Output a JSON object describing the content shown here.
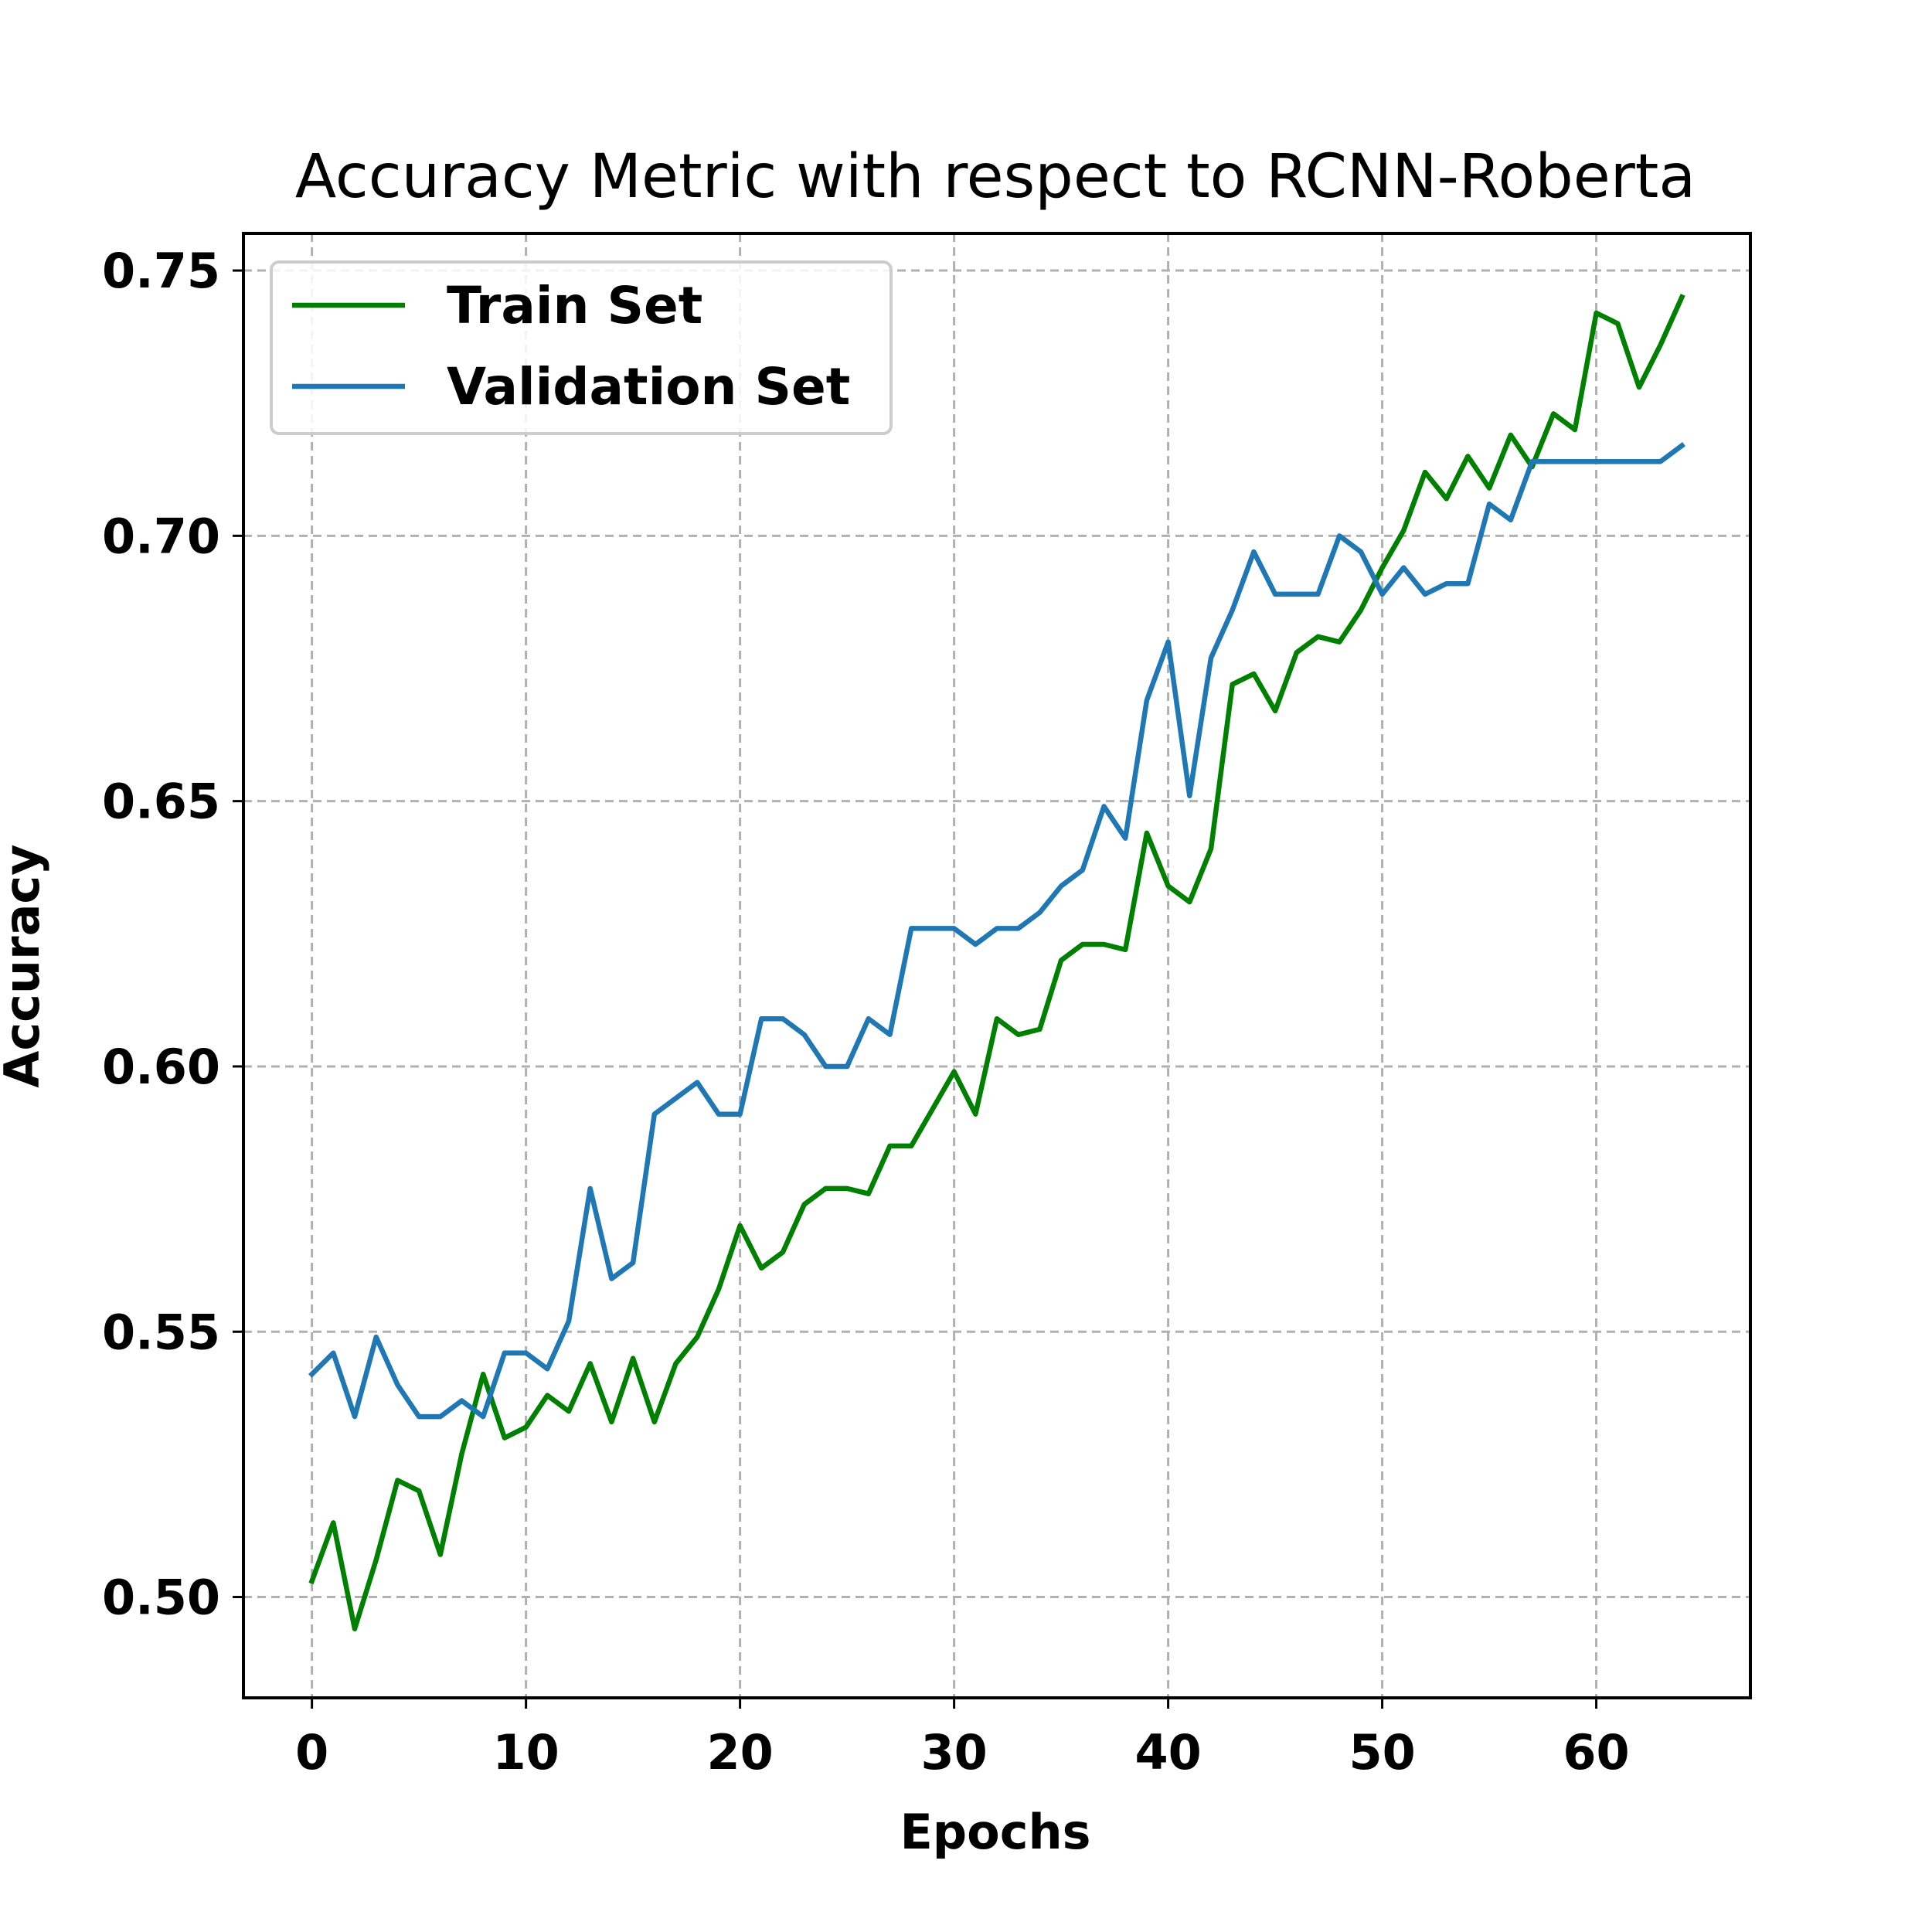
{
  "chart_data": {
    "type": "line",
    "title": "Accuracy Metric with respect to RCNN-Roberta",
    "xlabel": "Epochs",
    "ylabel": "Accuracy",
    "xlim": [
      -3.2,
      67.2
    ],
    "ylim": [
      0.481,
      0.757
    ],
    "xticks": [
      0,
      10,
      20,
      30,
      40,
      50,
      60
    ],
    "xtick_labels": [
      "0",
      "10",
      "20",
      "30",
      "40",
      "50",
      "60"
    ],
    "yticks": [
      0.5,
      0.55,
      0.6,
      0.65,
      0.7,
      0.75
    ],
    "ytick_labels": [
      "0.50",
      "0.55",
      "0.60",
      "0.65",
      "0.70",
      "0.75"
    ],
    "grid": true,
    "legend_position": "top-left",
    "x": [
      0,
      1,
      2,
      3,
      4,
      5,
      6,
      7,
      8,
      9,
      10,
      11,
      12,
      13,
      14,
      15,
      16,
      17,
      18,
      19,
      20,
      21,
      22,
      23,
      24,
      25,
      26,
      27,
      28,
      29,
      30,
      31,
      32,
      33,
      34,
      35,
      36,
      37,
      38,
      39,
      40,
      41,
      42,
      43,
      44,
      45,
      46,
      47,
      48,
      49,
      50,
      51,
      52,
      53,
      54,
      55,
      56,
      57,
      58,
      59,
      60,
      61,
      62,
      63,
      64
    ],
    "series": [
      {
        "name": "Train Set",
        "color": "#008000",
        "values": [
          0.503,
          0.514,
          0.494,
          0.507,
          0.522,
          0.52,
          0.508,
          0.527,
          0.542,
          0.53,
          0.532,
          0.538,
          0.535,
          0.544,
          0.533,
          0.545,
          0.533,
          0.544,
          0.549,
          0.558,
          0.57,
          0.562,
          0.565,
          0.574,
          0.577,
          0.577,
          0.576,
          0.585,
          0.585,
          0.592,
          0.599,
          0.591,
          0.609,
          0.606,
          0.607,
          0.62,
          0.623,
          0.623,
          0.622,
          0.644,
          0.634,
          0.631,
          0.641,
          0.672,
          0.674,
          0.667,
          0.678,
          0.681,
          0.68,
          0.686,
          0.694,
          0.701,
          0.712,
          0.707,
          0.715,
          0.709,
          0.719,
          0.713,
          0.723,
          0.72,
          0.742,
          0.74,
          0.728,
          0.736,
          0.745
        ]
      },
      {
        "name": "Validation Set",
        "color": "#1f77b4",
        "values": [
          0.542,
          0.546,
          0.534,
          0.549,
          0.54,
          0.534,
          0.534,
          0.537,
          0.534,
          0.546,
          0.546,
          0.543,
          0.552,
          0.577,
          0.56,
          0.563,
          0.591,
          0.594,
          0.597,
          0.591,
          0.591,
          0.609,
          0.609,
          0.606,
          0.6,
          0.6,
          0.609,
          0.606,
          0.626,
          0.626,
          0.626,
          0.623,
          0.626,
          0.626,
          0.629,
          0.634,
          0.637,
          0.649,
          0.643,
          0.669,
          0.68,
          0.651,
          0.677,
          0.686,
          0.697,
          0.689,
          0.689,
          0.689,
          0.7,
          0.697,
          0.689,
          0.694,
          0.689,
          0.691,
          0.691,
          0.706,
          0.703,
          0.714,
          0.714,
          0.714,
          0.714,
          0.714,
          0.714,
          0.714,
          0.717
        ]
      }
    ]
  }
}
